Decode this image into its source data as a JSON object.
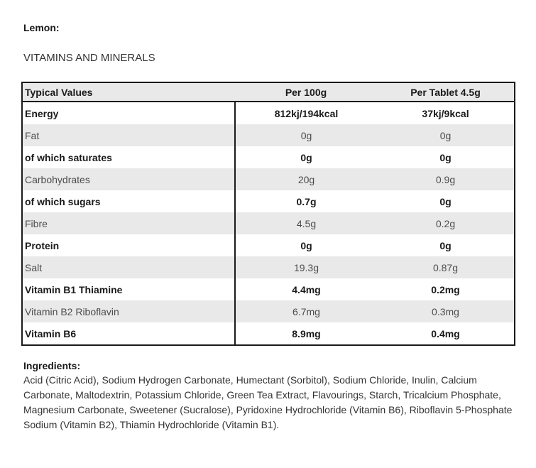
{
  "page": {
    "product_heading": "Lemon:",
    "section_heading": "VITAMINS AND MINERALS"
  },
  "table": {
    "columns": [
      "Typical Values",
      "Per 100g",
      "Per Tablet 4.5g"
    ],
    "rows": [
      {
        "label": "Energy",
        "per_100g": "812kj/194kcal",
        "per_tablet": "37kj/9kcal",
        "bold": true
      },
      {
        "label": "Fat",
        "per_100g": "0g",
        "per_tablet": "0g",
        "bold": false
      },
      {
        "label": "of which saturates",
        "per_100g": "0g",
        "per_tablet": "0g",
        "bold": true
      },
      {
        "label": "Carbohydrates",
        "per_100g": "20g",
        "per_tablet": "0.9g",
        "bold": false
      },
      {
        "label": "of which sugars",
        "per_100g": "0.7g",
        "per_tablet": "0g",
        "bold": true
      },
      {
        "label": "Fibre",
        "per_100g": "4.5g",
        "per_tablet": "0.2g",
        "bold": false
      },
      {
        "label": "Protein",
        "per_100g": "0g",
        "per_tablet": "0g",
        "bold": true
      },
      {
        "label": "Salt",
        "per_100g": "19.3g",
        "per_tablet": "0.87g",
        "bold": false
      },
      {
        "label": "Vitamin B1 Thiamine",
        "per_100g": "4.4mg",
        "per_tablet": "0.2mg",
        "bold": true
      },
      {
        "label": "Vitamin B2 Riboflavin",
        "per_100g": "6.7mg",
        "per_tablet": "0.3mg",
        "bold": false
      },
      {
        "label": "Vitamin B6",
        "per_100g": "8.9mg",
        "per_tablet": "0.4mg",
        "bold": true
      }
    ]
  },
  "ingredients": {
    "heading": "Ingredients:",
    "text": "Acid (Citric Acid), Sodium Hydrogen Carbonate, Humectant (Sorbitol), Sodium Chloride, Inulin, Calcium Carbonate, Maltodextrin, Potassium Chloride, Green Tea Extract, Flavourings, Starch, Tricalcium Phosphate, Magnesium Carbonate, Sweetener (Sucralose), Pyridoxine Hydrochloride (Vitamin B6), Riboflavin 5-Phosphate Sodium (Vitamin B2), Thiamin Hydrochloride (Vitamin B1)."
  },
  "colors": {
    "row_stripe": "#e9e9e9",
    "table_border": "#1a1a1a",
    "text_regular": "#4d4d4d",
    "text_bold": "#1a1a1a"
  }
}
